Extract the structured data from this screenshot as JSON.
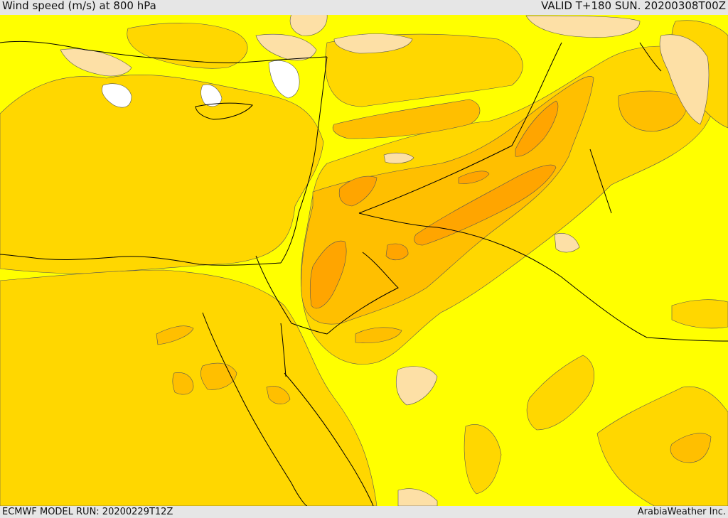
{
  "header": {
    "title": "Wind speed (m/s) at 800 hPa",
    "valid_time": "VALID T+180 SUN. 20200308T00Z"
  },
  "footer": {
    "model_run": "ECMWF MODEL RUN: 20200229T12Z",
    "credit": "ArabiaWeather Inc."
  },
  "palette": {
    "band_0": "#ffffff",
    "band_1": "#fde0a6",
    "band_2": "#ffff00",
    "band_3": "#ffd700",
    "band_4": "#ffbf00",
    "band_5": "#ffa500",
    "border": "#000000"
  }
}
